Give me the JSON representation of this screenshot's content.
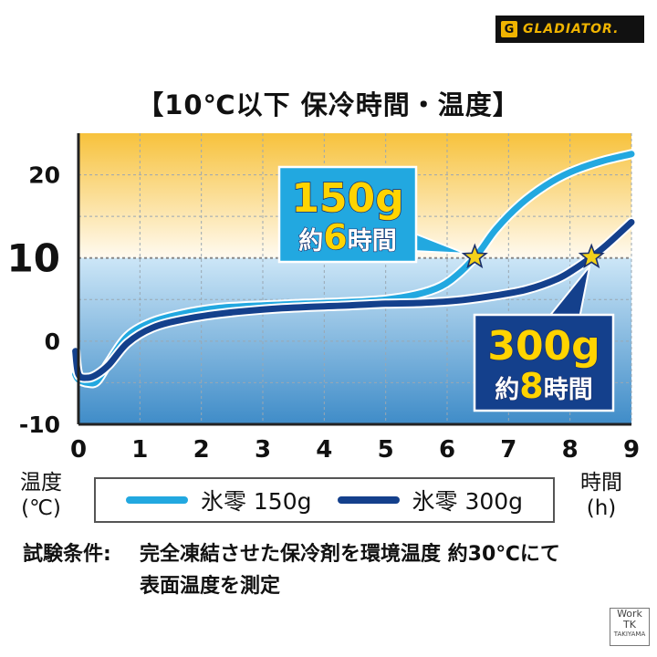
{
  "brand": {
    "logo_text": "GLADIATOR.",
    "logo_mark": "G",
    "corner_badge_line1": "Work",
    "corner_badge_line2": "TK",
    "corner_badge_line3": "TAKIYAMA"
  },
  "chart_title": "【10℃以下 保冷時間・温度】",
  "y_axis_label": [
    "温度",
    "(℃)"
  ],
  "x_axis_label": [
    "時間",
    "(h)"
  ],
  "legend": [
    {
      "label": "氷零 150g",
      "color": "#22a8e0"
    },
    {
      "label": "氷零 300g",
      "color": "#14408c"
    }
  ],
  "conditions": {
    "label": "試験条件:",
    "line1": "完全凍結させた保冷剤を環境温度 約30℃にて",
    "line2": "表面温度を測定"
  },
  "chart_data": {
    "type": "line",
    "xlim": [
      0,
      9
    ],
    "ylim": [
      -10,
      25
    ],
    "x_ticks": [
      "0",
      "1",
      "2",
      "3",
      "4",
      "5",
      "6",
      "7",
      "8",
      "9"
    ],
    "y_ticks": [
      {
        "value": 20,
        "label": "20"
      },
      {
        "value": 10,
        "label": "10"
      },
      {
        "value": 0,
        "label": "0"
      },
      {
        "value": -10,
        "label": "-10"
      }
    ],
    "threshold_y": 10,
    "grid": true,
    "background": {
      "warm_color": "#f7c23c",
      "cool_color_top": "#cce6f7",
      "cool_color_bottom": "#3f8cc8"
    },
    "series": [
      {
        "name": "氷零 150g",
        "color": "#22a8e0",
        "x": [
          -0.05,
          0,
          0.15,
          0.3,
          0.5,
          0.8,
          1.2,
          1.7,
          2.3,
          3.0,
          3.7,
          4.4,
          5.0,
          5.5,
          5.9,
          6.2,
          6.5,
          6.8,
          7.2,
          7.6,
          8.0,
          8.5,
          9.0
        ],
        "y": [
          -4.0,
          -4.6,
          -5.0,
          -4.8,
          -2.5,
          0.6,
          2.3,
          3.3,
          4.0,
          4.3,
          4.5,
          4.7,
          5.0,
          5.6,
          6.6,
          8.2,
          10.5,
          13.5,
          16.5,
          18.7,
          20.3,
          21.6,
          22.5
        ]
      },
      {
        "name": "氷零 300g",
        "color": "#14408c",
        "x": [
          -0.05,
          0,
          0.15,
          0.3,
          0.5,
          0.8,
          1.2,
          1.7,
          2.3,
          3.0,
          3.7,
          4.4,
          5.0,
          5.6,
          6.2,
          6.8,
          7.3,
          7.8,
          8.1,
          8.35,
          8.6,
          9.0
        ],
        "y": [
          -1.2,
          -4.0,
          -4.4,
          -4.0,
          -2.8,
          -0.2,
          1.6,
          2.6,
          3.3,
          3.8,
          4.1,
          4.3,
          4.5,
          4.6,
          4.9,
          5.5,
          6.2,
          7.5,
          8.8,
          10.1,
          11.6,
          14.3
        ]
      }
    ],
    "annotations": [
      {
        "series": "氷零 150g",
        "x": 6.45,
        "y": 10.1,
        "line1": "150g",
        "line2_prefix": "約",
        "line2_num": "6",
        "line2_suffix": "時間",
        "box_color": "#22a8e0"
      },
      {
        "series": "氷零 300g",
        "x": 8.35,
        "y": 10.1,
        "line1": "300g",
        "line2_prefix": "約",
        "line2_num": "8",
        "line2_suffix": "時間",
        "box_color": "#14408c"
      }
    ]
  }
}
